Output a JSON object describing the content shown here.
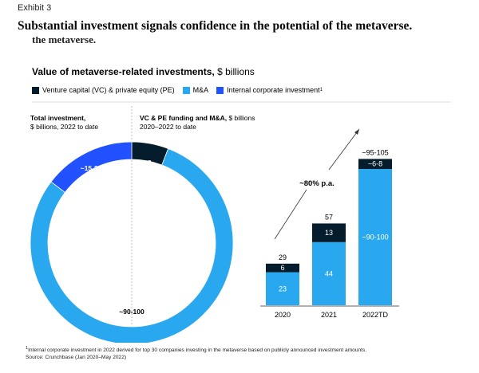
{
  "exhibit": "Exhibit 3",
  "title": "Substantial investment signals confidence in the potential of the metaverse.",
  "ghost_text": "the metaverse.",
  "subtitle_bold": "Value of metaverse-related investments,",
  "subtitle_rest": " $ billions",
  "legend": [
    {
      "label": "Venture capital (VC) & private equity (PE)",
      "color": "#051c2c"
    },
    {
      "label": "M&A",
      "color": "#00a9f4"
    },
    {
      "label": "Internal corporate investment",
      "color": "#2251ff",
      "sup": "1"
    }
  ],
  "colors": {
    "vc_pe": "#051c2c",
    "ma": "#29a8f0",
    "internal": "#2251ff"
  },
  "left_panel": {
    "title_line1": "Total investment,",
    "title_line2": "$ billions, 2022 to date"
  },
  "right_panel": {
    "title_bold": "VC & PE funding and M&A,",
    "title_rest": " $ billions",
    "title_line2": "2020–2022 to date"
  },
  "growth_label": "~80% p.a.",
  "footnote": "Internal corporate investment in 2022 derived for top 30 companies investing in the metaverse based on publicly announced investment amounts.",
  "footnote_sup": "1",
  "source": "Source: Crunchbase (Jan 2020–May 2022)",
  "chart_data": [
    {
      "type": "pie",
      "title": "Total investment, $ billions, 2022 to date",
      "slices": [
        {
          "name": "VC & PE",
          "label": "~6-8",
          "value": 7
        },
        {
          "name": "M&A",
          "label": "~90-100",
          "value": 95
        },
        {
          "name": "Internal corporate investment",
          "label": "~15-20",
          "value": 17.5
        }
      ]
    },
    {
      "type": "bar",
      "title": "VC & PE funding and M&A, $ billions, 2020–2022 to date",
      "categories": [
        "2020",
        "2021",
        "2022TD"
      ],
      "series": [
        {
          "name": "M&A",
          "values": [
            23,
            44,
            95
          ],
          "labels": [
            "23",
            "44",
            "~90-100"
          ]
        },
        {
          "name": "VC & PE",
          "values": [
            6,
            13,
            7
          ],
          "labels": [
            "6",
            "13",
            "~6-8"
          ]
        }
      ],
      "totals": [
        "29",
        "57",
        "~95-105"
      ],
      "annotation": "~80% p.a."
    }
  ]
}
